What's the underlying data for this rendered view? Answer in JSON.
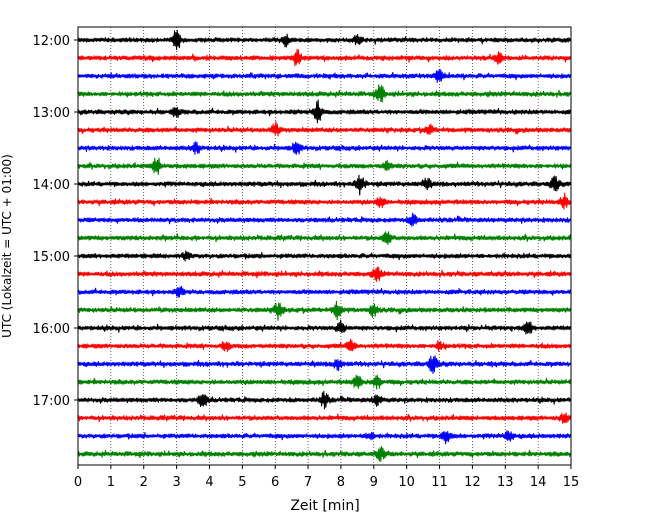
{
  "chart_data": {
    "type": "line",
    "subtype": "helicorder",
    "xlabel": "Zeit  [min]",
    "ylabel": "UTC (Lokalzeit = UTC + 01:00)",
    "xlim": [
      0,
      15
    ],
    "x_ticks": [
      0,
      1,
      2,
      3,
      4,
      5,
      6,
      7,
      8,
      9,
      10,
      11,
      12,
      13,
      14,
      15
    ],
    "x_grid": "dotted vertical lines at every minute",
    "y_tick_labels": [
      "12:00",
      "13:00",
      "14:00",
      "15:00",
      "16:00",
      "17:00"
    ],
    "y_tick_trace_indices": [
      0,
      4,
      8,
      12,
      16,
      20
    ],
    "minutes_per_trace": 15,
    "trace_color_cycle": [
      "#000000",
      "#ff0000",
      "#0000ff",
      "#008000"
    ],
    "traces": [
      {
        "start": "12:00",
        "color": "#000000",
        "events": [
          {
            "t": 3.0,
            "amp": 9
          },
          {
            "t": 6.3,
            "amp": 5
          },
          {
            "t": 8.5,
            "amp": 4
          }
        ]
      },
      {
        "start": "12:15",
        "color": "#ff0000",
        "events": [
          {
            "t": 6.65,
            "amp": 8
          },
          {
            "t": 12.8,
            "amp": 5
          }
        ]
      },
      {
        "start": "12:30",
        "color": "#0000ff",
        "events": [
          {
            "t": 11.0,
            "amp": 6
          }
        ]
      },
      {
        "start": "12:45",
        "color": "#008000",
        "events": [
          {
            "t": 9.2,
            "amp": 8
          }
        ]
      },
      {
        "start": "13:00",
        "color": "#000000",
        "events": [
          {
            "t": 7.3,
            "amp": 11
          },
          {
            "t": 3.0,
            "amp": 4
          }
        ]
      },
      {
        "start": "13:15",
        "color": "#ff0000",
        "events": [
          {
            "t": 6.0,
            "amp": 6
          },
          {
            "t": 10.7,
            "amp": 4
          }
        ]
      },
      {
        "start": "13:30",
        "color": "#0000ff",
        "events": [
          {
            "t": 3.6,
            "amp": 5
          },
          {
            "t": 6.65,
            "amp": 6
          }
        ]
      },
      {
        "start": "13:45",
        "color": "#008000",
        "events": [
          {
            "t": 2.4,
            "amp": 8
          },
          {
            "t": 9.4,
            "amp": 4
          }
        ]
      },
      {
        "start": "14:00",
        "color": "#000000",
        "events": [
          {
            "t": 8.6,
            "amp": 9
          },
          {
            "t": 10.6,
            "amp": 5
          },
          {
            "t": 14.5,
            "amp": 7
          }
        ]
      },
      {
        "start": "14:15",
        "color": "#ff0000",
        "events": [
          {
            "t": 9.2,
            "amp": 5
          },
          {
            "t": 14.8,
            "amp": 7
          }
        ]
      },
      {
        "start": "14:30",
        "color": "#0000ff",
        "events": [
          {
            "t": 10.2,
            "amp": 6
          }
        ]
      },
      {
        "start": "14:45",
        "color": "#008000",
        "events": [
          {
            "t": 9.4,
            "amp": 7
          }
        ]
      },
      {
        "start": "15:00",
        "color": "#000000",
        "events": [
          {
            "t": 3.3,
            "amp": 4
          }
        ]
      },
      {
        "start": "15:15",
        "color": "#ff0000",
        "events": [
          {
            "t": 9.1,
            "amp": 6
          }
        ]
      },
      {
        "start": "15:30",
        "color": "#0000ff",
        "events": [
          {
            "t": 3.1,
            "amp": 4
          }
        ]
      },
      {
        "start": "15:45",
        "color": "#008000",
        "events": [
          {
            "t": 6.1,
            "amp": 8
          },
          {
            "t": 7.9,
            "amp": 8
          },
          {
            "t": 9.0,
            "amp": 6
          }
        ]
      },
      {
        "start": "16:00",
        "color": "#000000",
        "events": [
          {
            "t": 8.0,
            "amp": 6
          },
          {
            "t": 13.7,
            "amp": 6
          }
        ]
      },
      {
        "start": "16:15",
        "color": "#ff0000",
        "events": [
          {
            "t": 4.5,
            "amp": 4
          },
          {
            "t": 8.3,
            "amp": 5
          },
          {
            "t": 11.0,
            "amp": 4
          }
        ]
      },
      {
        "start": "16:30",
        "color": "#0000ff",
        "events": [
          {
            "t": 10.8,
            "amp": 10
          },
          {
            "t": 7.9,
            "amp": 5
          }
        ]
      },
      {
        "start": "16:45",
        "color": "#008000",
        "events": [
          {
            "t": 8.5,
            "amp": 6
          },
          {
            "t": 9.1,
            "amp": 7
          }
        ]
      },
      {
        "start": "17:00",
        "color": "#000000",
        "events": [
          {
            "t": 3.8,
            "amp": 7
          },
          {
            "t": 7.5,
            "amp": 7
          },
          {
            "t": 9.1,
            "amp": 5
          }
        ]
      },
      {
        "start": "17:15",
        "color": "#ff0000",
        "events": [
          {
            "t": 14.8,
            "amp": 5
          }
        ]
      },
      {
        "start": "17:30",
        "color": "#0000ff",
        "events": [
          {
            "t": 11.2,
            "amp": 7
          },
          {
            "t": 13.1,
            "amp": 5
          },
          {
            "t": 8.9,
            "amp": 4
          }
        ]
      },
      {
        "start": "17:45",
        "color": "#008000",
        "events": [
          {
            "t": 9.2,
            "amp": 6
          }
        ]
      }
    ]
  }
}
